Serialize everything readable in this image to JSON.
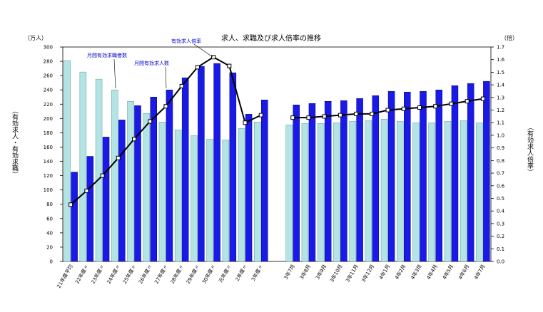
{
  "chart_data": {
    "type": "bar",
    "title": "求人、求職及び求人倍率の推移",
    "left_unit": "（万人）",
    "right_unit": "（倍）",
    "ylabel_left": "（有効求人・有効求職）",
    "ylabel_right": "（有効求人倍率）",
    "ylim_left": [
      0,
      300
    ],
    "ylim_right": [
      0.0,
      1.7
    ],
    "left_ticks": [
      0,
      20,
      40,
      60,
      80,
      100,
      120,
      140,
      160,
      180,
      200,
      220,
      240,
      260,
      280,
      300
    ],
    "right_ticks": [
      "0.0",
      "0.1",
      "0.2",
      "0.3",
      "0.4",
      "0.5",
      "0.6",
      "0.7",
      "0.8",
      "0.9",
      "1.0",
      "1.1",
      "1.2",
      "1.3",
      "1.4",
      "1.5",
      "1.6",
      "1.7"
    ],
    "categories": [
      "21年度平均",
      "22年度〃",
      "23年度〃",
      "24年度〃",
      "25年度〃",
      "26年度〃",
      "27年度〃",
      "28年度〃",
      "29年度〃",
      "30年度〃",
      "元年度〃",
      "2年度〃",
      "3年度〃",
      "",
      "3年7月",
      "3年8月",
      "3年9月",
      "3年10月",
      "3年11月",
      "3年12月",
      "4年1月",
      "4年2月",
      "4年3月",
      "4年4月",
      "4年5月",
      "4年6月",
      "4年7月"
    ],
    "series": [
      {
        "name": "月間有効求職者数",
        "axis": "left",
        "color": "#b3e3e3",
        "values": [
          281,
          265,
          255,
          240,
          224,
          207,
          195,
          184,
          176,
          171,
          170,
          186,
          195,
          null,
          191,
          193,
          193,
          194,
          196,
          197,
          199,
          196,
          194,
          194,
          196,
          197,
          194
        ]
      },
      {
        "name": "月間有効求人数",
        "axis": "left",
        "color": "#1a1ae6",
        "values": [
          125,
          147,
          174,
          198,
          218,
          230,
          240,
          257,
          273,
          277,
          264,
          206,
          226,
          null,
          219,
          221,
          224,
          225,
          228,
          232,
          238,
          237,
          238,
          240,
          246,
          249,
          252
        ]
      },
      {
        "name": "有効求人倍率",
        "axis": "right",
        "color": "#000000",
        "values": [
          0.45,
          0.56,
          0.68,
          0.82,
          0.97,
          1.11,
          1.23,
          1.39,
          1.54,
          1.62,
          1.55,
          1.1,
          1.16,
          null,
          1.14,
          1.14,
          1.15,
          1.16,
          1.17,
          1.17,
          1.2,
          1.21,
          1.22,
          1.23,
          1.25,
          1.27,
          1.29
        ]
      }
    ],
    "annotations": [
      "有効求人倍率",
      "月間有効求職者数",
      "月間有効求人数"
    ]
  }
}
